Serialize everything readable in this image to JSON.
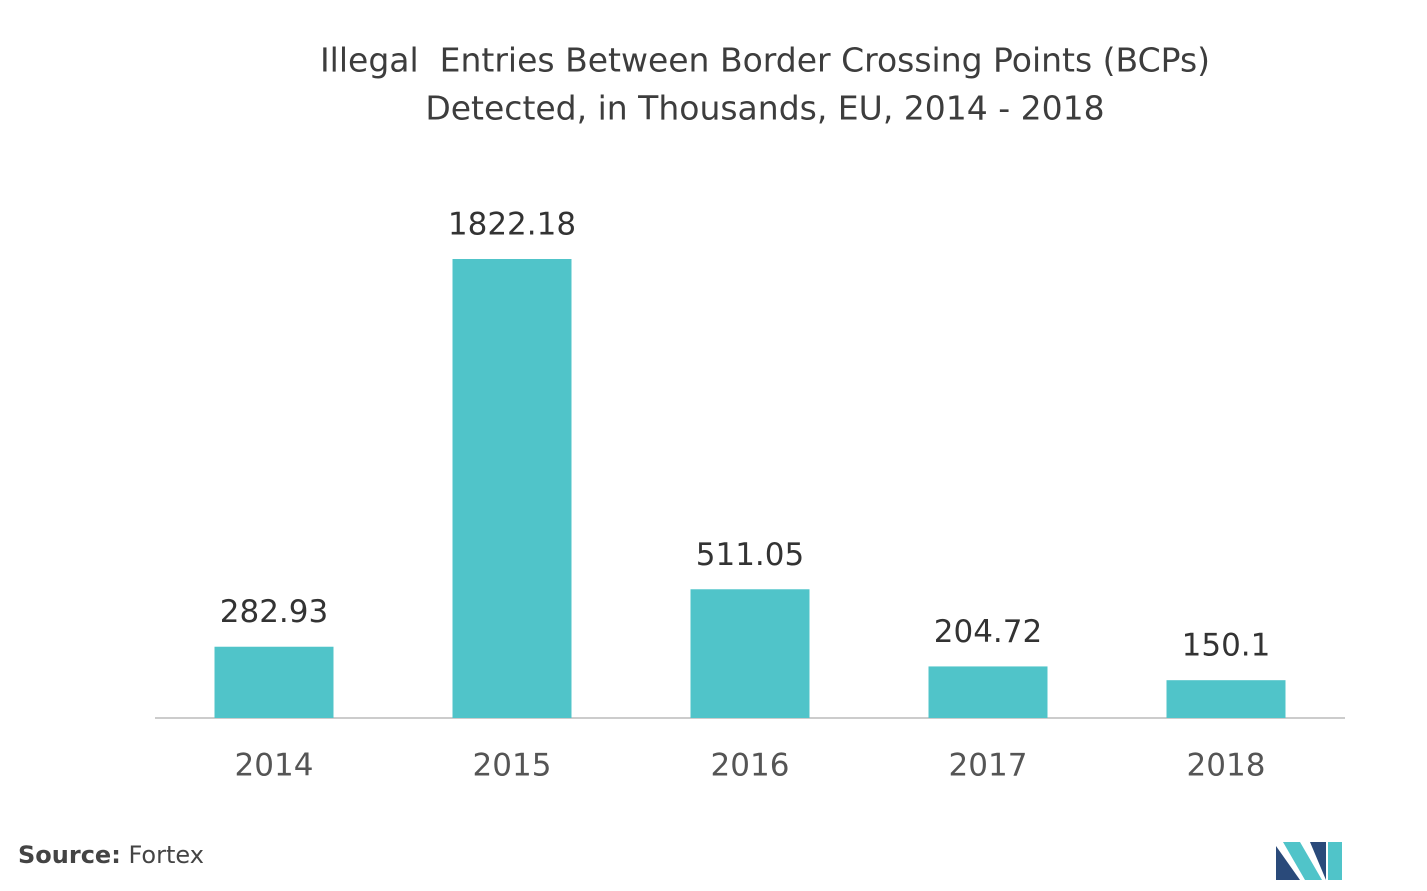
{
  "chart_data": {
    "type": "bar",
    "title": [
      "Illegal  Entries Between Border Crossing Points (BCPs)",
      "Detected, in Thousands, EU, 2014 - 2018"
    ],
    "categories": [
      "2014",
      "2015",
      "2016",
      "2017",
      "2018"
    ],
    "values": [
      282.93,
      1822.18,
      511.05,
      204.72,
      150.1
    ],
    "color": "#50c4c9",
    "source_label": "Source:",
    "source": "Fortex"
  }
}
